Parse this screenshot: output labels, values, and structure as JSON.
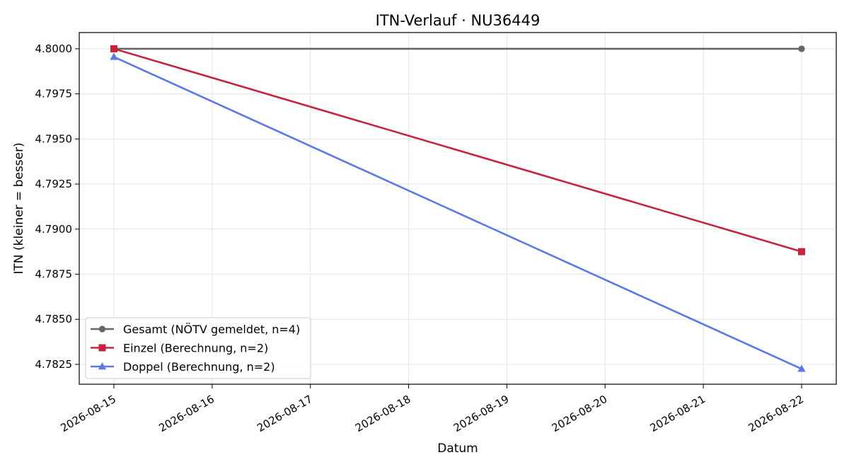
{
  "chart_data": {
    "type": "line",
    "title": "ITN-Verlauf · NU36449",
    "xlabel": "Datum",
    "ylabel": "ITN  (kleiner = besser)",
    "x_ticks": [
      "2026-08-15",
      "2026-08-16",
      "2026-08-17",
      "2026-08-18",
      "2026-08-19",
      "2026-08-20",
      "2026-08-21",
      "2026-08-22"
    ],
    "y_ticks": [
      "4.7825",
      "4.7850",
      "4.7875",
      "4.7900",
      "4.7925",
      "4.7950",
      "4.7975",
      "4.8000"
    ],
    "xlim": [
      "2026-08-14",
      "2026-08-22"
    ],
    "ylim": [
      4.7814,
      4.8009
    ],
    "grid": true,
    "legend_position": "lower-left",
    "series": [
      {
        "name": "Gesamt (NÖTV gemeldet, n=4)",
        "color": "#666666",
        "marker": "circle",
        "points": [
          {
            "x": "2026-08-15",
            "y": 4.8
          },
          {
            "x": "2026-08-22",
            "y": 4.8
          }
        ]
      },
      {
        "name": "Einzel (Berechnung, n=2)",
        "color": "#c8233e",
        "marker": "square",
        "points": [
          {
            "x": "2026-08-15",
            "y": 4.8
          },
          {
            "x": "2026-08-22",
            "y": 4.78875
          }
        ]
      },
      {
        "name": "Doppel (Berechnung, n=2)",
        "color": "#5b78ea",
        "marker": "triangle",
        "points": [
          {
            "x": "2026-08-15",
            "y": 4.79955
          },
          {
            "x": "2026-08-22",
            "y": 4.78225
          }
        ]
      }
    ]
  }
}
